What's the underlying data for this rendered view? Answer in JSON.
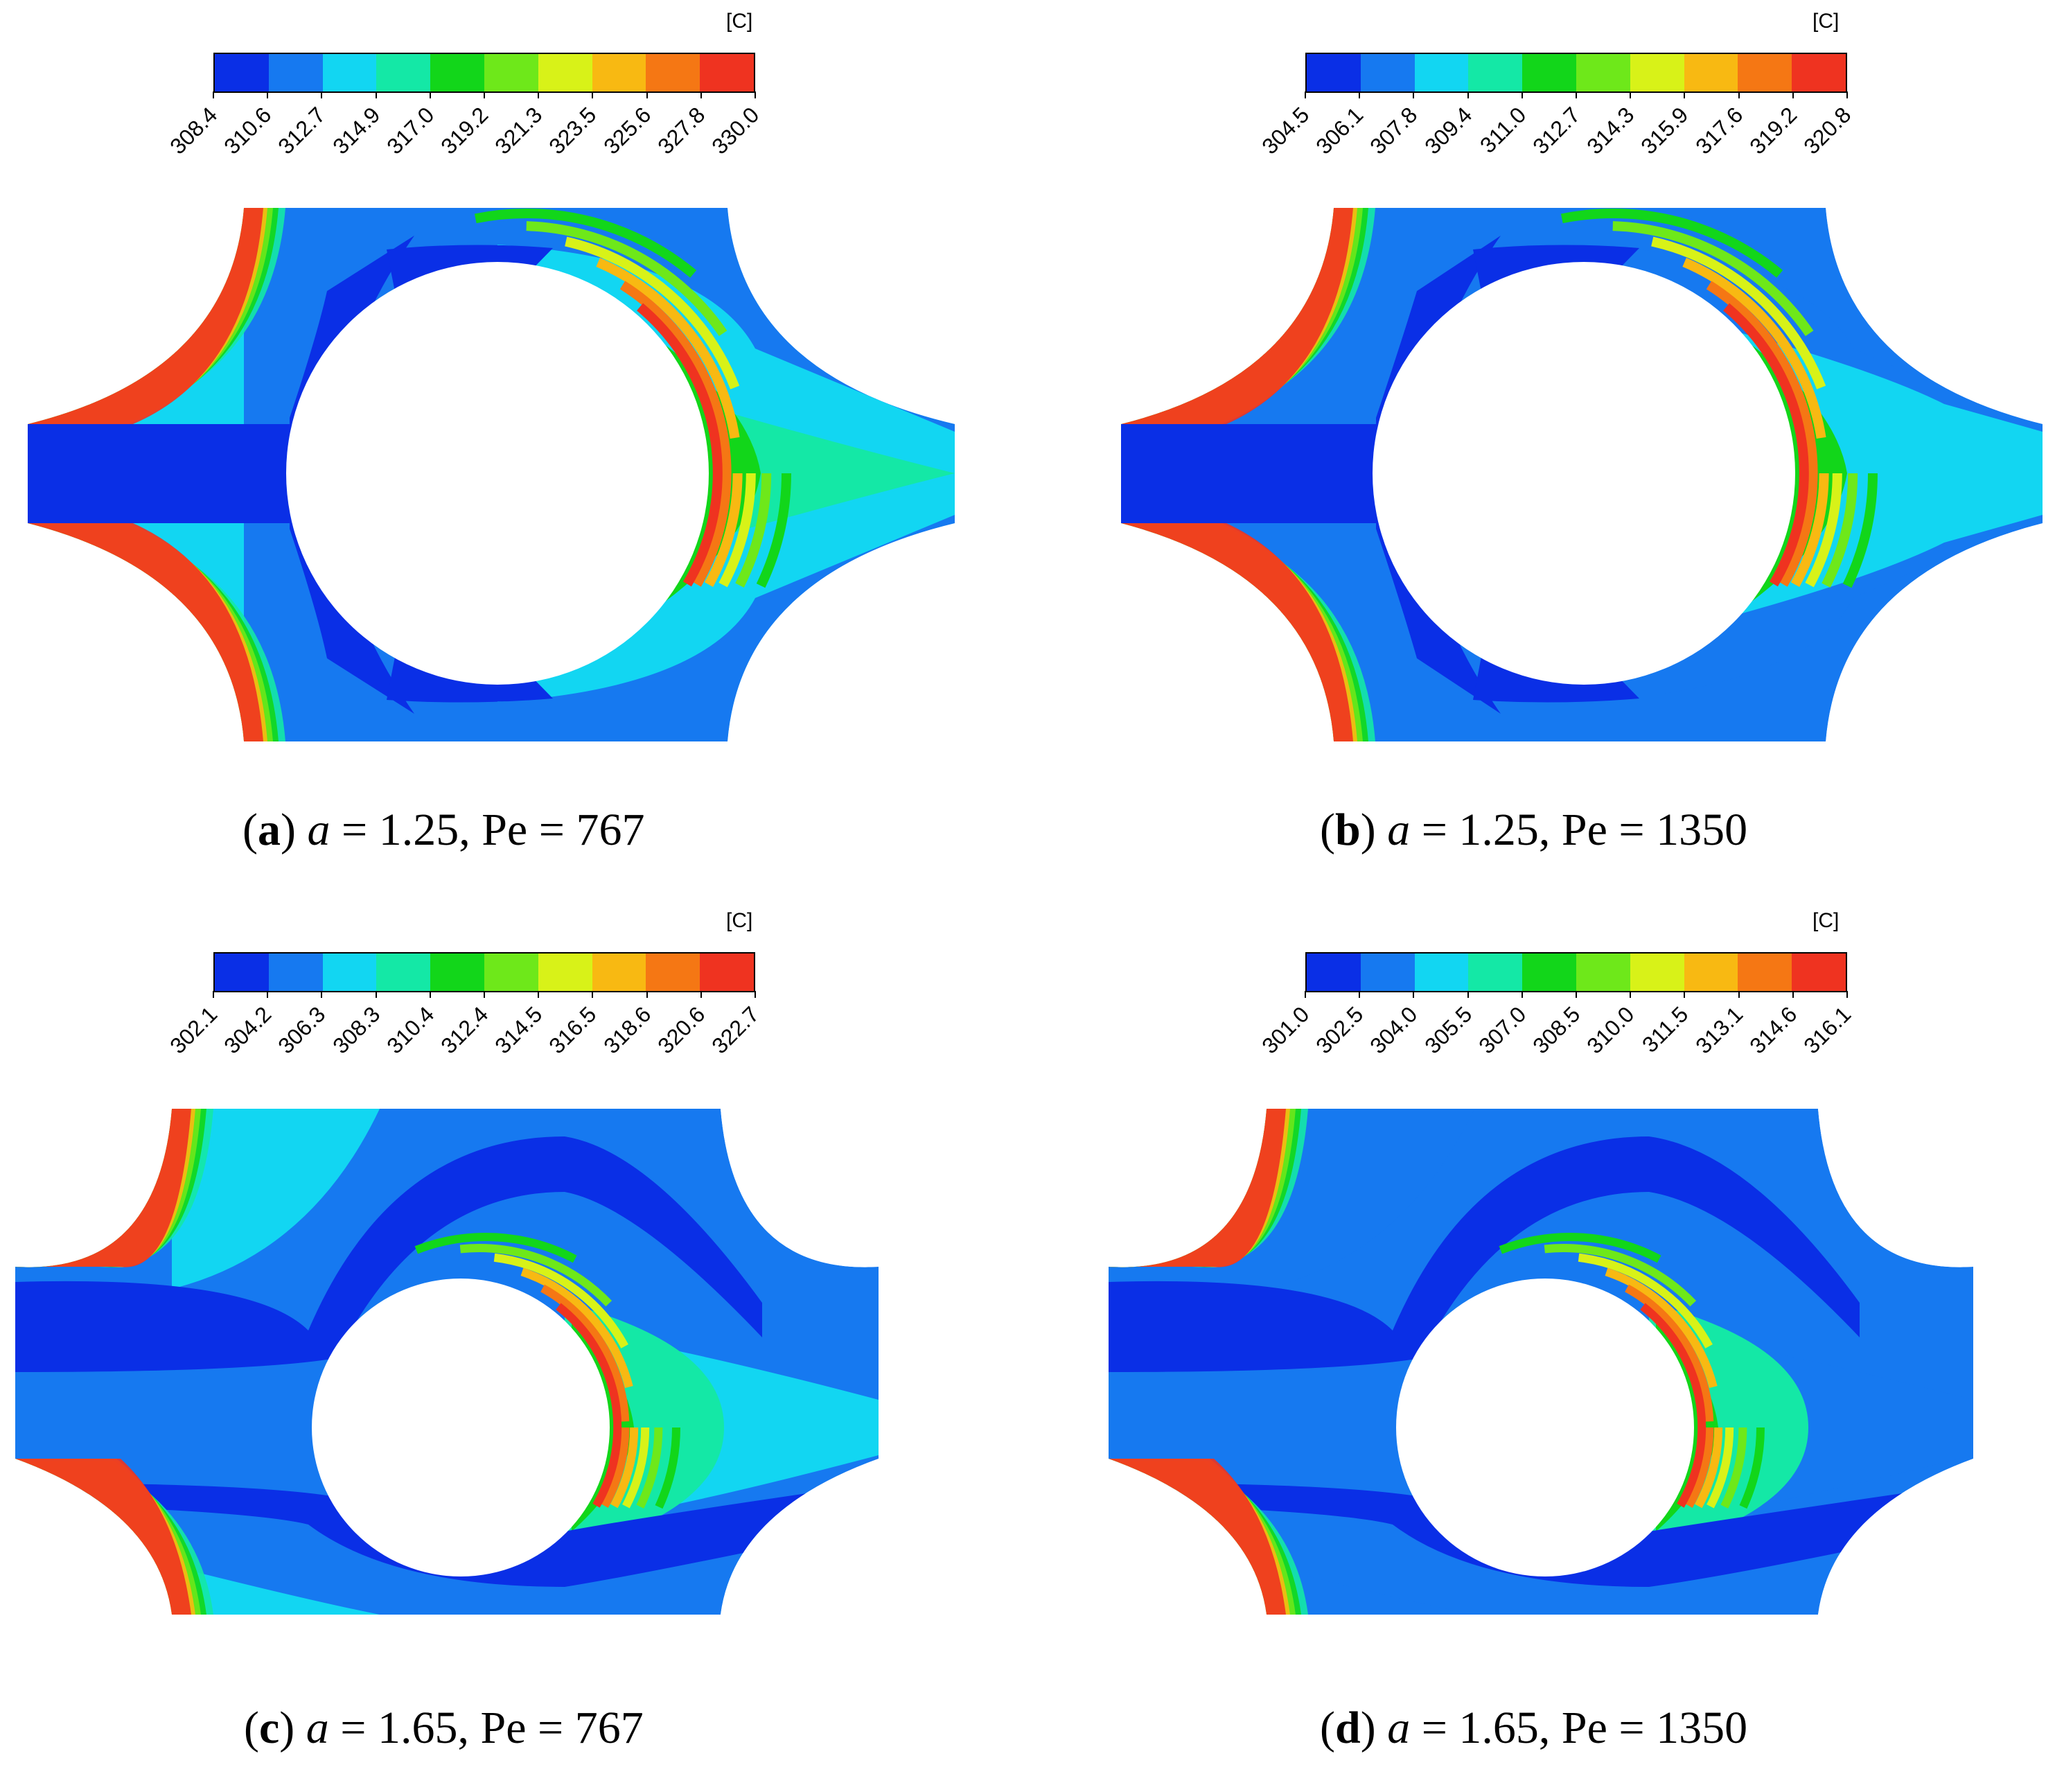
{
  "colorscale": [
    "#0a2fe6",
    "#1679f0",
    "#12d6f2",
    "#14e8a6",
    "#12d61a",
    "#6ee81a",
    "#d8f218",
    "#f8b912",
    "#f57714",
    "#ef3320"
  ],
  "panels": [
    {
      "id": "a",
      "unit": "[C]",
      "ticks": [
        "308.4",
        "310.6",
        "312.7",
        "314.9",
        "317.0",
        "319.2",
        "321.3",
        "323.5",
        "325.6",
        "327.8",
        "330.0"
      ],
      "caption": {
        "letter": "a",
        "var": "a",
        "a_value": "1.25",
        "pe_label": "Pe",
        "pe_value": "767"
      }
    },
    {
      "id": "b",
      "unit": "[C]",
      "ticks": [
        "304.5",
        "306.1",
        "307.8",
        "309.4",
        "311.0",
        "312.7",
        "314.3",
        "315.9",
        "317.6",
        "319.2",
        "320.8"
      ],
      "caption": {
        "letter": "b",
        "var": "a",
        "a_value": "1.25",
        "pe_label": "Pe",
        "pe_value": "1350"
      }
    },
    {
      "id": "c",
      "unit": "[C]",
      "ticks": [
        "302.1",
        "304.2",
        "306.3",
        "308.3",
        "310.4",
        "312.4",
        "314.5",
        "316.5",
        "318.6",
        "320.6",
        "322.7"
      ],
      "caption": {
        "letter": "c",
        "var": "a",
        "a_value": "1.65",
        "pe_label": "Pe",
        "pe_value": "767"
      }
    },
    {
      "id": "d",
      "unit": "[C]",
      "ticks": [
        "301.0",
        "302.5",
        "304.0",
        "305.5",
        "307.0",
        "308.5",
        "310.0",
        "311.5",
        "313.1",
        "314.6",
        "316.1"
      ],
      "caption": {
        "letter": "d",
        "var": "a",
        "a_value": "1.65",
        "pe_label": "Pe",
        "pe_value": "1350"
      }
    }
  ]
}
